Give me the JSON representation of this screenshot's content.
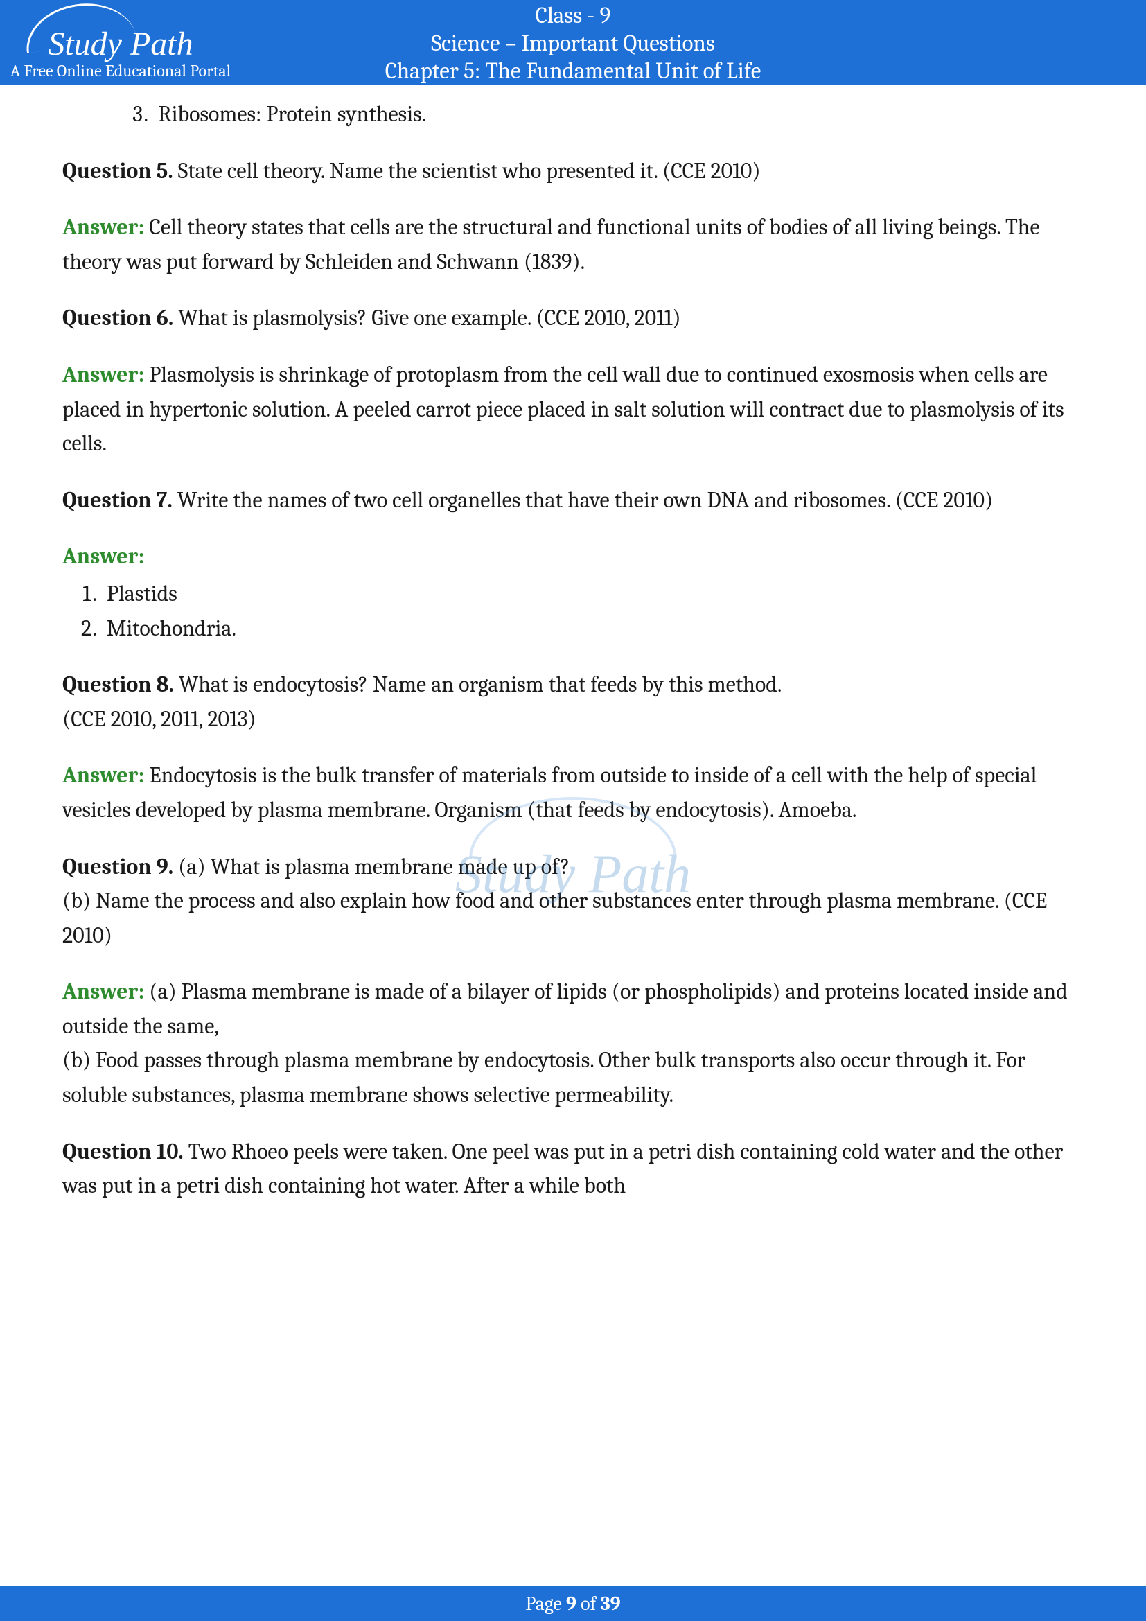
{
  "header": {
    "logo_script": "Study Path",
    "logo_tagline": "A Free Online Educational Portal",
    "line1": "Class - 9",
    "line2": "Science – Important Questions",
    "line3": "Chapter 5: The Fundamental Unit of Life"
  },
  "content": {
    "item3": "Ribosomes: Protein synthesis.",
    "q5_label": "Question 5.",
    "q5_text": " State cell theory. Name the scientist who presented it. (CCE 2010)",
    "a5_label": "Answer:",
    "a5_text": " Cell theory states that cells are the structural and functional units of bodies of all living beings. The theory was put forward by Schleiden and Schwann (1839).",
    "q6_label": "Question 6.",
    "q6_text": " What is plasmolysis? Give one example. (CCE 2010, 2011)",
    "a6_label": "Answer:",
    "a6_text": " Plasmolysis is shrinkage of protoplasm from the cell wall due to continued exosmosis when cells are placed in hypertonic solution. A peeled carrot piece placed in salt solution will contract due to plasmolysis of its cells.",
    "q7_label": "Question 7.",
    "q7_text": " Write the names of two cell organelles that have their own DNA and ribosomes. (CCE 2010)",
    "a7_label": "Answer:",
    "a7_list1": "Plastids",
    "a7_list2": "Mitochondria.",
    "q8_label": "Question 8.",
    "q8_text": " What is endocytosis? Name an organism that feeds by this method.",
    "q8_ref": "(CCE 2010, 2011, 2013)",
    "a8_label": "Answer:",
    "a8_text": " Endocytosis is the bulk transfer of materials from outside to inside of a cell with the help of special vesicles developed by plasma membrane. Organism (that feeds by endocytosis). Amoeba.",
    "q9_label": "Question 9.",
    "q9_text": " (a) What is plasma membrane made up of?",
    "q9_b": "(b) Name the process and also explain how food and other substances enter through plasma membrane. (CCE 2010)",
    "a9_label": "Answer:",
    "a9_a": " (a) Plasma membrane is made of a bilayer of lipids (or phospholipids) and proteins located inside and outside the same,",
    "a9_b": "(b) Food passes through plasma membrane by endocytosis. Other bulk transports also occur through it. For soluble substances, plasma membrane shows selective permeability.",
    "q10_label": "Question 10.",
    "q10_text": " Two Rhoeo peels were taken. One peel was put in a petri dish containing cold water and the other was put in a petri dish containing hot water. After a while both"
  },
  "footer": {
    "prefix": "Page ",
    "page": "9",
    "mid": " of ",
    "total": "39"
  },
  "watermark": "Study Path",
  "colors": {
    "header_bg": "#1e6fd6",
    "answer_green": "#2e8b2e",
    "text": "#1a1a1a"
  }
}
